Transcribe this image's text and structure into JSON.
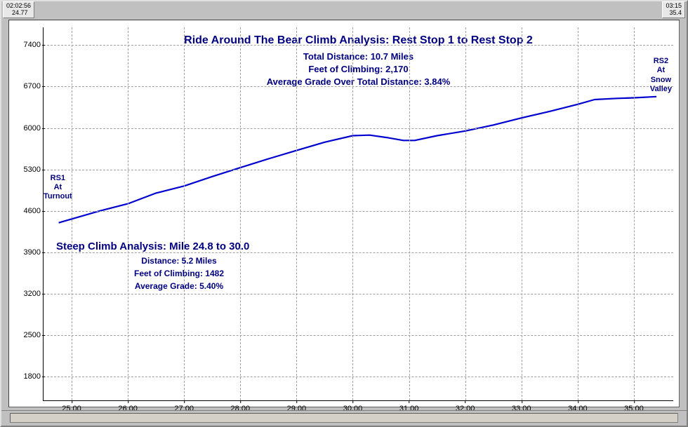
{
  "topbar": {
    "left_time": "02:02:56",
    "left_dist": "24.77",
    "right_time": "03:15",
    "right_dist": "35.4"
  },
  "chart": {
    "title": "Ride Around The Bear Climb Analysis: Rest Stop 1 to Rest Stop 2",
    "sub1": "Total Distance: 10.7 Miles",
    "sub2": "Feet of Climbing: 2,170",
    "sub3": "Average Grade Over Total Distance: 3.84%",
    "steep_title": "Steep Climb Analysis: Mile 24.8 to 30.0",
    "steep_sub1": "Distance:  5.2 Miles",
    "steep_sub2": "Feet of Climbing: 1482",
    "steep_sub3": "Average Grade: 5.40%",
    "x_min": 24.5,
    "x_max": 35.7,
    "y_min": 1400,
    "y_max": 7700,
    "x_ticks": [
      25.0,
      26.0,
      27.0,
      28.0,
      29.0,
      30.0,
      31.0,
      32.0,
      33.0,
      34.0,
      35.0
    ],
    "y_ticks": [
      1800,
      2500,
      3200,
      3900,
      4600,
      5300,
      6000,
      6700,
      7400
    ],
    "grid_color": "#a0a0a0",
    "line_color": "#0000d0",
    "line_width": 2.2,
    "text_color": "#000080",
    "bg_color": "#ffffff",
    "series": [
      [
        24.77,
        4400
      ],
      [
        25.5,
        4600
      ],
      [
        26.0,
        4720
      ],
      [
        26.5,
        4900
      ],
      [
        27.0,
        5020
      ],
      [
        27.5,
        5180
      ],
      [
        28.0,
        5330
      ],
      [
        28.5,
        5480
      ],
      [
        29.0,
        5620
      ],
      [
        29.5,
        5760
      ],
      [
        30.0,
        5870
      ],
      [
        30.3,
        5880
      ],
      [
        30.6,
        5840
      ],
      [
        30.9,
        5790
      ],
      [
        31.1,
        5790
      ],
      [
        31.5,
        5870
      ],
      [
        32.0,
        5950
      ],
      [
        32.5,
        6050
      ],
      [
        33.0,
        6170
      ],
      [
        33.5,
        6280
      ],
      [
        34.0,
        6400
      ],
      [
        34.3,
        6480
      ],
      [
        34.7,
        6500
      ],
      [
        35.0,
        6510
      ],
      [
        35.4,
        6530
      ]
    ],
    "ann_rs1": "RS1\nAt\nTurnout",
    "ann_rs2": "RS2\nAt\nSnow\nValley"
  }
}
